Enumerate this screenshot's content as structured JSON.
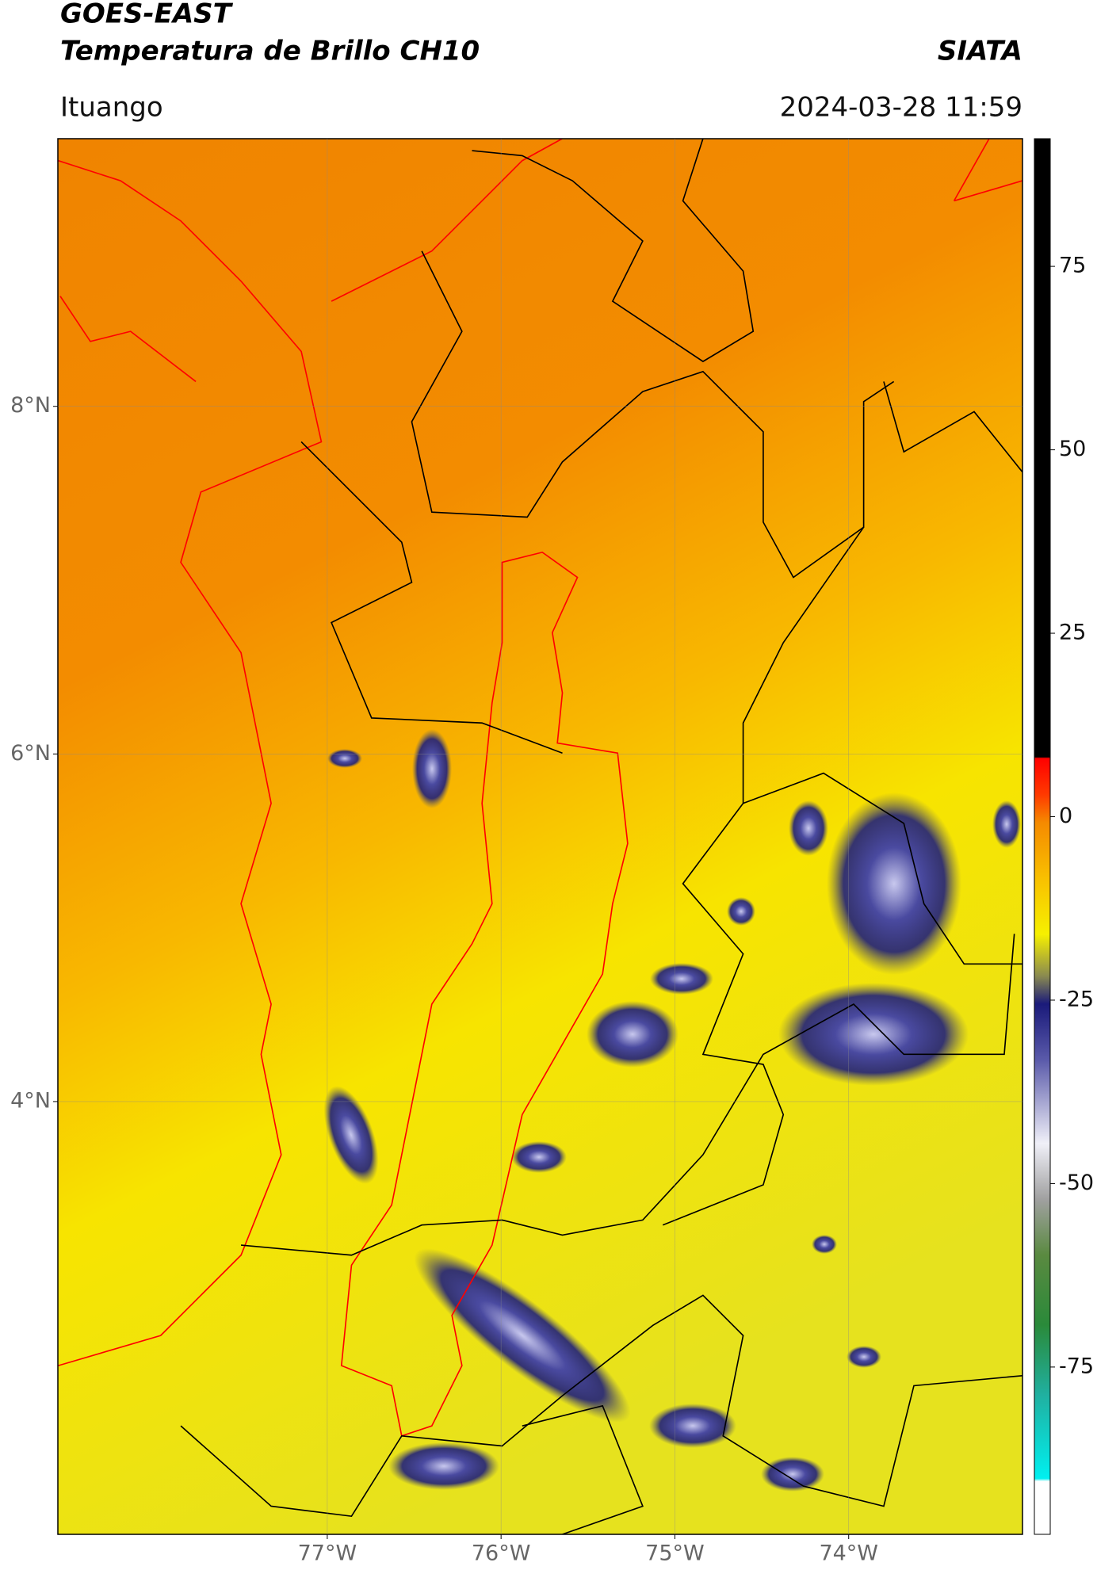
{
  "header": {
    "title": "GOES-EAST",
    "subtitle": "Temperatura de Brillo CH10",
    "source": "SIATA",
    "location": "Ituango",
    "datetime": "2024-03-28 11:59"
  },
  "map": {
    "xlim": [
      -78.55,
      -73.0
    ],
    "ylim": [
      1.51,
      9.54
    ],
    "xticks": [
      {
        "value": -77,
        "label": "77°W"
      },
      {
        "value": -76,
        "label": "76°W"
      },
      {
        "value": -75,
        "label": "75°W"
      },
      {
        "value": -74,
        "label": "74°W"
      }
    ],
    "yticks": [
      {
        "value": 8,
        "label": "8°N"
      },
      {
        "value": 6,
        "label": "6°N"
      },
      {
        "value": 4,
        "label": "4°N"
      }
    ],
    "grid": true
  },
  "colorbar": {
    "lim": [
      -97.8,
      92.4
    ],
    "ticks": [
      75,
      50,
      25,
      0,
      -25,
      -50,
      -75
    ]
  }
}
